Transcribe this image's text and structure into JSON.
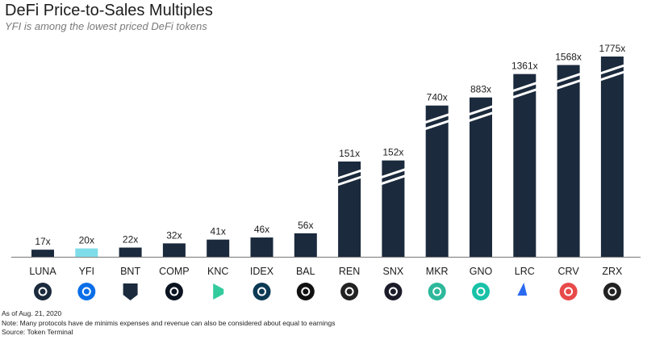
{
  "header": {
    "title": "DeFi Price-to-Sales Multiples",
    "subtitle": "YFI is among the lowest priced DeFi tokens"
  },
  "colors": {
    "bar": "#1b2a3c",
    "highlight": "#7fdde9",
    "axis": "#8a8a8a"
  },
  "chart_data": {
    "type": "bar",
    "title": "DeFi Price-to-Sales Multiples",
    "subtitle": "YFI is among the lowest priced DeFi tokens",
    "categories": [
      "LUNA",
      "YFI",
      "BNT",
      "COMP",
      "KNC",
      "IDEX",
      "BAL",
      "REN",
      "SNX",
      "MKR",
      "GNO",
      "LRC",
      "CRV",
      "ZRX"
    ],
    "values": [
      17,
      20,
      22,
      32,
      41,
      46,
      56,
      151,
      152,
      740,
      883,
      1361,
      1568,
      1775
    ],
    "data_labels": [
      "17x",
      "20x",
      "22x",
      "32x",
      "41x",
      "46x",
      "56x",
      "151x",
      "152x",
      "740x",
      "883x",
      "1361x",
      "1568x",
      "1775x"
    ],
    "highlight_category": "YFI",
    "axis_break_categories": [
      "REN",
      "SNX",
      "MKR",
      "GNO",
      "LRC",
      "CRV",
      "ZRX"
    ],
    "xlabel": "",
    "ylabel": "",
    "grid": false,
    "legend": "none",
    "icons": [
      {
        "token": "LUNA",
        "icon": "luna-icon",
        "color": "#1b2a3c"
      },
      {
        "token": "YFI",
        "icon": "yfi-icon",
        "color": "#0b6ee8"
      },
      {
        "token": "BNT",
        "icon": "bnt-icon",
        "color": "#1b2a3c"
      },
      {
        "token": "COMP",
        "icon": "comp-icon",
        "color": "#0b1420"
      },
      {
        "token": "KNC",
        "icon": "knc-icon",
        "color": "#31cb9e"
      },
      {
        "token": "IDEX",
        "icon": "idex-icon",
        "color": "#0b3a54"
      },
      {
        "token": "BAL",
        "icon": "bal-icon",
        "color": "#111111"
      },
      {
        "token": "REN",
        "icon": "ren-icon",
        "color": "#222222"
      },
      {
        "token": "SNX",
        "icon": "snx-icon",
        "color": "#1b1b2a"
      },
      {
        "token": "MKR",
        "icon": "mkr-icon",
        "color": "#2db89b"
      },
      {
        "token": "GNO",
        "icon": "gno-icon",
        "color": "#18c2a8"
      },
      {
        "token": "LRC",
        "icon": "lrc-icon",
        "color": "#2a6af0"
      },
      {
        "token": "CRV",
        "icon": "crv-icon",
        "color": "#e84a4a"
      },
      {
        "token": "ZRX",
        "icon": "zrx-icon",
        "color": "#222222"
      }
    ]
  },
  "footnotes": {
    "as_of": "As of Aug. 21, 2020",
    "note": "Note: Many protocols have de minimis expenses and revenue can also be considered about equal to earnings",
    "source": "Source: Token Terminal"
  }
}
